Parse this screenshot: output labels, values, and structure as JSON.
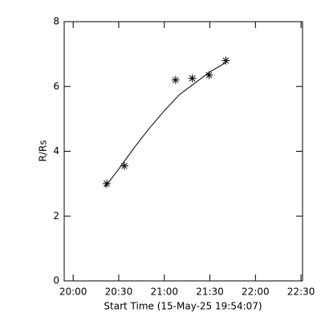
{
  "chart_data": {
    "type": "scatter",
    "xlabel": "Start Time (15-May-25 19:54:07)",
    "ylabel": "R/Rs",
    "xlim": [
      -5.9,
      151
    ],
    "xticks": [
      {
        "value": 0,
        "label": "20:00"
      },
      {
        "value": 30,
        "label": "20:30"
      },
      {
        "value": 60,
        "label": "21:00"
      },
      {
        "value": 90,
        "label": "21:30"
      },
      {
        "value": 120,
        "label": "22:00"
      },
      {
        "value": 150,
        "label": "22:30"
      }
    ],
    "ylim": [
      0,
      8
    ],
    "yticks": [
      0,
      2,
      4,
      6,
      8
    ],
    "series": [
      {
        "x": [
          22.1,
          33.7,
          67.4,
          78.4,
          89.5,
          100.5
        ],
        "values": [
          3.0,
          3.55,
          6.2,
          6.25,
          6.35,
          6.8
        ],
        "color": "#000000",
        "marker": "asterisk"
      },
      {
        "x": [
          21,
          30,
          40,
          50,
          60,
          70,
          80,
          90,
          101
        ],
        "values": [
          2.9,
          3.45,
          4.1,
          4.7,
          5.25,
          5.75,
          6.1,
          6.45,
          6.75
        ],
        "color": "#000000",
        "marker": "line"
      }
    ]
  }
}
